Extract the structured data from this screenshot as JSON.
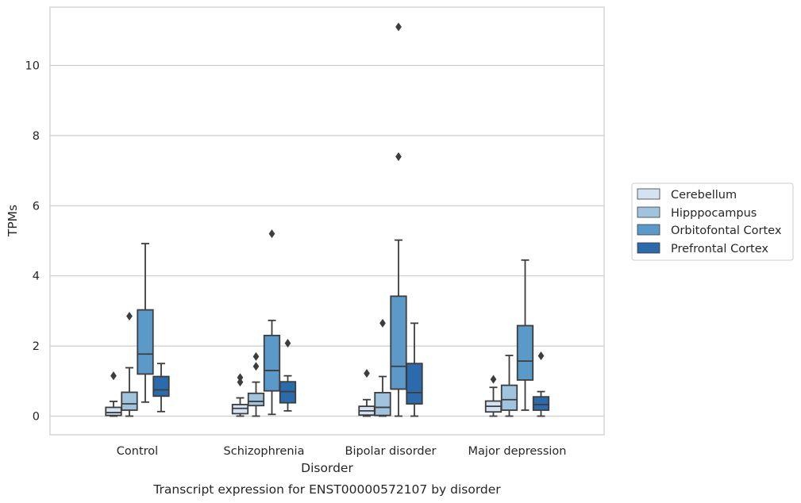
{
  "chart_data": {
    "type": "box",
    "title": "Transcript expression for ENST00000572107 by disorder",
    "xlabel": "Disorder",
    "ylabel": "TPMs",
    "ylim": [
      -0.5,
      11.7
    ],
    "yticks": [
      0,
      2,
      4,
      6,
      8,
      10
    ],
    "grid": true,
    "legend_position": "right",
    "categories": [
      "Control",
      "Schizophrenia",
      "Bipolar disorder",
      "Major depression"
    ],
    "series": [
      {
        "name": "Cerebellum",
        "color": "#d4e3f1",
        "boxes": [
          {
            "whisker_low": 0.0,
            "q1": 0.02,
            "median": 0.1,
            "q3": 0.25,
            "whisker_high": 0.42,
            "outliers": [
              1.15
            ]
          },
          {
            "whisker_low": 0.0,
            "q1": 0.07,
            "median": 0.22,
            "q3": 0.33,
            "whisker_high": 0.52,
            "outliers": [
              0.97,
              1.1
            ]
          },
          {
            "whisker_low": 0.0,
            "q1": 0.03,
            "median": 0.15,
            "q3": 0.28,
            "whisker_high": 0.47,
            "outliers": [
              1.22
            ]
          },
          {
            "whisker_low": 0.0,
            "q1": 0.12,
            "median": 0.28,
            "q3": 0.43,
            "whisker_high": 0.82,
            "outliers": [
              1.05
            ]
          }
        ]
      },
      {
        "name": "Hipppocampus",
        "color": "#a0c3de",
        "boxes": [
          {
            "whisker_low": 0.0,
            "q1": 0.17,
            "median": 0.35,
            "q3": 0.68,
            "whisker_high": 1.38,
            "outliers": [
              2.85
            ]
          },
          {
            "whisker_low": 0.0,
            "q1": 0.3,
            "median": 0.42,
            "q3": 0.65,
            "whisker_high": 0.97,
            "outliers": [
              1.42,
              1.7
            ]
          },
          {
            "whisker_low": 0.0,
            "q1": 0.02,
            "median": 0.25,
            "q3": 0.67,
            "whisker_high": 1.13,
            "outliers": [
              2.65
            ]
          },
          {
            "whisker_low": 0.0,
            "q1": 0.17,
            "median": 0.47,
            "q3": 0.88,
            "whisker_high": 1.73,
            "outliers": []
          }
        ]
      },
      {
        "name": "Orbitofontal Cortex",
        "color": "#5b99c9",
        "boxes": [
          {
            "whisker_low": 0.4,
            "q1": 1.2,
            "median": 1.77,
            "q3": 3.03,
            "whisker_high": 4.92,
            "outliers": []
          },
          {
            "whisker_low": 0.05,
            "q1": 0.72,
            "median": 1.3,
            "q3": 2.3,
            "whisker_high": 2.73,
            "outliers": [
              5.2
            ]
          },
          {
            "whisker_low": 0.0,
            "q1": 0.77,
            "median": 1.42,
            "q3": 3.42,
            "whisker_high": 5.02,
            "outliers": [
              7.4,
              11.1
            ]
          },
          {
            "whisker_low": 0.17,
            "q1": 1.03,
            "median": 1.57,
            "q3": 2.58,
            "whisker_high": 4.45,
            "outliers": []
          }
        ]
      },
      {
        "name": "Prefrontal Cortex",
        "color": "#2b6aab",
        "boxes": [
          {
            "whisker_low": 0.13,
            "q1": 0.57,
            "median": 0.75,
            "q3": 1.13,
            "whisker_high": 1.5,
            "outliers": []
          },
          {
            "whisker_low": 0.15,
            "q1": 0.38,
            "median": 0.7,
            "q3": 0.98,
            "whisker_high": 1.15,
            "outliers": [
              2.08
            ]
          },
          {
            "whisker_low": 0.0,
            "q1": 0.35,
            "median": 0.67,
            "q3": 1.5,
            "whisker_high": 2.65,
            "outliers": []
          },
          {
            "whisker_low": 0.0,
            "q1": 0.17,
            "median": 0.33,
            "q3": 0.55,
            "whisker_high": 0.7,
            "outliers": [
              1.72
            ]
          }
        ]
      }
    ]
  }
}
